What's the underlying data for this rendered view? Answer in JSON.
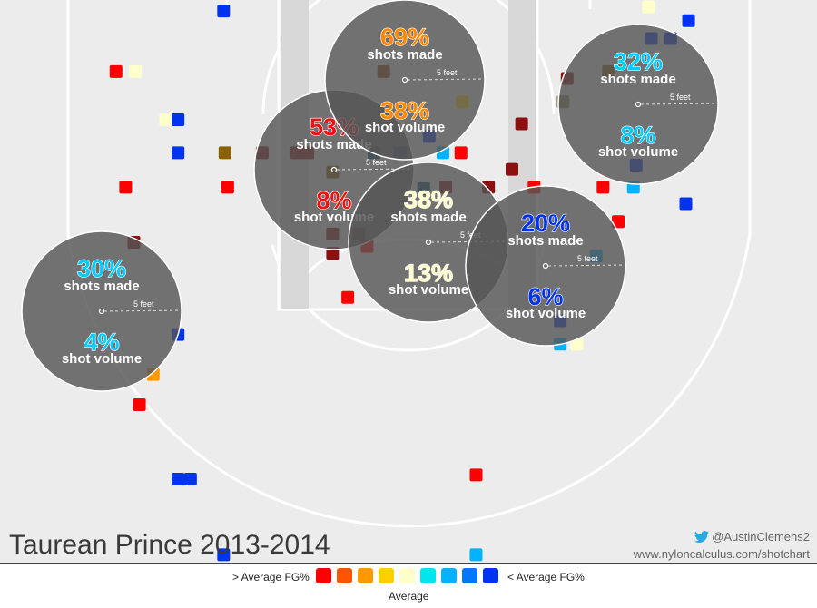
{
  "title": "Taurean Prince 2013-2014",
  "credit": {
    "handle": "@AustinClemens2",
    "url": "www.nyloncalculus.com/shotchart",
    "bird_icon": "twitter-bird-icon"
  },
  "legend": {
    "left_label": "> Average FG%",
    "right_label": "< Average FG%",
    "middle_label": "Average",
    "colors": [
      "#ff0000",
      "#ff5500",
      "#ff9900",
      "#ffd000",
      "#ffffcc",
      "#00e5ee",
      "#00b2ff",
      "#0077ff",
      "#0033ee"
    ]
  },
  "colors": {
    "court_bg": "#ececec",
    "court_lines": "#ffffff",
    "bubble_fill": "#555555",
    "hoop": "#ffffff"
  },
  "chart_data": {
    "type": "scatter",
    "description_units": "court feet; x = lateral offset from hoop center, y = distance from baseline",
    "zones": [
      {
        "name": "left-corner",
        "made_pct": "30%",
        "volume_pct": "4%",
        "made_label": "shots made",
        "volume_label": "shot volume",
        "scale_label": "5 feet",
        "made_color": "#00ccff",
        "volume_color": "#00ccff"
      },
      {
        "name": "left-wing",
        "made_pct": "53%",
        "volume_pct": "8%",
        "made_label": "shots made",
        "volume_label": "shot volume",
        "scale_label": "5 feet",
        "made_color": "#ee1111",
        "volume_color": "#ee1111"
      },
      {
        "name": "top-key",
        "made_pct": "69%",
        "volume_pct": "38%",
        "made_label": "shots made",
        "volume_label": "shot volume",
        "scale_label": "5 feet",
        "made_color": "#ff8800",
        "volume_color": "#ff8800"
      },
      {
        "name": "center",
        "made_pct": "38%",
        "volume_pct": "13%",
        "made_label": "shots made",
        "volume_label": "shot volume",
        "scale_label": "5 feet",
        "made_color": "#ffffcc",
        "volume_color": "#ffffcc"
      },
      {
        "name": "right-wing",
        "made_pct": "20%",
        "volume_pct": "6%",
        "made_label": "shots made",
        "volume_label": "shot volume",
        "scale_label": "5 feet",
        "made_color": "#0033ee",
        "volume_color": "#0033ee"
      },
      {
        "name": "right-corner",
        "made_pct": "32%",
        "volume_pct": "8%",
        "made_label": "shots made",
        "volume_label": "shot volume",
        "scale_label": "5 feet",
        "made_color": "#00ccff",
        "volume_color": "#00ccff"
      }
    ],
    "shots": [
      {
        "x": -21.2,
        "y": 22.3,
        "color": "#ff0000"
      },
      {
        "x": -19.8,
        "y": 22.3,
        "color": "#ffffcc"
      },
      {
        "x": -20.5,
        "y": 13.9,
        "color": "#ff0000"
      },
      {
        "x": -17.6,
        "y": 18.8,
        "color": "#ffffcc"
      },
      {
        "x": -16.7,
        "y": 18.8,
        "color": "#0033ee"
      },
      {
        "x": -16.7,
        "y": 16.4,
        "color": "#0033ee"
      },
      {
        "x": -19.9,
        "y": 9.9,
        "color": "#8b1010"
      },
      {
        "x": -16.7,
        "y": 3.2,
        "color": "#0033ee"
      },
      {
        "x": -18.5,
        "y": 0.3,
        "color": "#ff9900"
      },
      {
        "x": -19.5,
        "y": -1.9,
        "color": "#ff0000"
      },
      {
        "x": -16.7,
        "y": -7.3,
        "color": "#0033ee"
      },
      {
        "x": -15.8,
        "y": -7.3,
        "color": "#0033ee"
      },
      {
        "x": -13.4,
        "y": -12.8,
        "color": "#0033ee"
      },
      {
        "x": -13.4,
        "y": 26.7,
        "color": "#0033ee"
      },
      {
        "x": -10.6,
        "y": 16.4,
        "color": "#8b1010"
      },
      {
        "x": -8.1,
        "y": 16.4,
        "color": "#8b1010"
      },
      {
        "x": -7.3,
        "y": 16.4,
        "color": "#8b1010"
      },
      {
        "x": -13.3,
        "y": 16.4,
        "color": "#8b6000"
      },
      {
        "x": -13.1,
        "y": 13.9,
        "color": "#ff0000"
      },
      {
        "x": -5.5,
        "y": 15.0,
        "color": "#8b6000"
      },
      {
        "x": -5.5,
        "y": 10.5,
        "color": "#8b1010"
      },
      {
        "x": -5.5,
        "y": 9.1,
        "color": "#8b1010"
      },
      {
        "x": -3.6,
        "y": 10.5,
        "color": "#8b1010"
      },
      {
        "x": -4.4,
        "y": 5.9,
        "color": "#ff0000"
      },
      {
        "x": -1.8,
        "y": 22.3,
        "color": "#8b4000"
      },
      {
        "x": -2.5,
        "y": 16.4,
        "color": "#0a4b6b"
      },
      {
        "x": -0.6,
        "y": 16.4,
        "color": "#0033ee"
      },
      {
        "x": 1.5,
        "y": 17.6,
        "color": "#0033ee"
      },
      {
        "x": 2.5,
        "y": 16.4,
        "color": "#00b2ff"
      },
      {
        "x": 3.8,
        "y": 16.4,
        "color": "#ff0000"
      },
      {
        "x": 3.9,
        "y": 20.1,
        "color": "#ffd000"
      },
      {
        "x": 5.8,
        "y": 13.9,
        "color": "#8b1010"
      },
      {
        "x": 2.7,
        "y": 13.9,
        "color": "#8b1010"
      },
      {
        "x": 1.1,
        "y": 13.8,
        "color": "#0a4b6b"
      },
      {
        "x": 7.5,
        "y": 15.2,
        "color": "#8b1010"
      },
      {
        "x": 9.1,
        "y": 13.9,
        "color": "#ff0000"
      },
      {
        "x": 8.2,
        "y": 18.5,
        "color": "#8b1010"
      },
      {
        "x": 11.2,
        "y": 20.1,
        "color": "#8b8860"
      },
      {
        "x": 11.5,
        "y": 21.8,
        "color": "#8b1010"
      },
      {
        "x": 14.5,
        "y": 22.3,
        "color": "#8b6000"
      },
      {
        "x": 16.3,
        "y": 13.9,
        "color": "#00b2ff"
      },
      {
        "x": 16.5,
        "y": 15.5,
        "color": "#0033ee"
      },
      {
        "x": 17.6,
        "y": 24.7,
        "color": "#0033ee"
      },
      {
        "x": 19.0,
        "y": 24.7,
        "color": "#0033ee"
      },
      {
        "x": 20.3,
        "y": 26.0,
        "color": "#0033ee"
      },
      {
        "x": 17.4,
        "y": 27.0,
        "color": "#ffffcc"
      },
      {
        "x": 14.1,
        "y": 13.9,
        "color": "#ff0000"
      },
      {
        "x": 15.2,
        "y": 11.4,
        "color": "#ff0000"
      },
      {
        "x": 13.6,
        "y": 8.9,
        "color": "#00b2ff"
      },
      {
        "x": 20.1,
        "y": 12.7,
        "color": "#0033ee"
      },
      {
        "x": 11.0,
        "y": 4.2,
        "color": "#0033ee"
      },
      {
        "x": 11.0,
        "y": 2.5,
        "color": "#00b2ff"
      },
      {
        "x": 12.2,
        "y": 2.5,
        "color": "#ffffcc"
      },
      {
        "x": 4.9,
        "y": -7.0,
        "color": "#ff0000"
      },
      {
        "x": 4.9,
        "y": -12.8,
        "color": "#00b2ff"
      },
      {
        "x": -3.0,
        "y": 9.6,
        "color": "#ff0000"
      }
    ]
  }
}
